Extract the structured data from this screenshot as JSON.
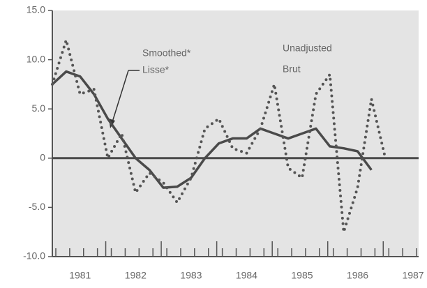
{
  "chart_data": {
    "type": "line",
    "annotations": [
      "Smoothed*",
      "Lisse*",
      "Unadjusted",
      "Brut"
    ],
    "series": [
      {
        "color": "#4a4a4a",
        "style": "solid",
        "x": [
          1980.5,
          1980.75,
          1981,
          1981.25,
          1981.5,
          1981.75,
          1982,
          1982.25,
          1982.5,
          1982.75,
          1983,
          1983.25,
          1983.5,
          1983.75,
          1984,
          1984.25,
          1984.5,
          1984.75,
          1985,
          1985.25,
          1985.5,
          1985.75,
          1986,
          1986.25
        ],
        "values": [
          7.5,
          8.8,
          8.3,
          6.5,
          4.0,
          2.0,
          0.0,
          -1.2,
          -3.0,
          -2.9,
          -2.0,
          0.0,
          1.5,
          2.0,
          2.0,
          3.0,
          2.5,
          2.0,
          2.5,
          3.0,
          1.2,
          1.0,
          0.7,
          -1.2
        ]
      },
      {
        "color": "#555555",
        "style": "dotted",
        "x": [
          1980.5,
          1980.75,
          1981,
          1981.25,
          1981.5,
          1981.75,
          1982,
          1982.25,
          1982.5,
          1982.75,
          1983,
          1983.25,
          1983.5,
          1983.75,
          1984,
          1984.25,
          1984.5,
          1984.75,
          1985,
          1985.25,
          1985.5,
          1985.75,
          1986,
          1986.25,
          1986.5
        ],
        "values": [
          7.5,
          12.0,
          6.5,
          7.0,
          0.0,
          2.5,
          -3.5,
          -1.5,
          -2.5,
          -4.5,
          -2.0,
          3.0,
          4.0,
          1.0,
          0.5,
          3.0,
          7.5,
          -1.0,
          -2.0,
          6.5,
          8.5,
          -7.5,
          -3.0,
          6.0,
          0.0
        ]
      }
    ],
    "xlim": [
      1980.5,
      1987.1
    ],
    "xticks": [
      1981,
      1982,
      1983,
      1984,
      1985,
      1986,
      1987
    ],
    "ylim": [
      -10,
      15
    ],
    "yticks": [
      {
        "value": 15,
        "label": "15.0"
      },
      {
        "value": 10,
        "label": "10.0"
      },
      {
        "value": 5,
        "label": "5.0"
      },
      0,
      {
        "value": -5,
        "label": "-5.0"
      },
      {
        "value": -10,
        "label": "-10.0"
      }
    ],
    "background": "#e4e4e4"
  }
}
